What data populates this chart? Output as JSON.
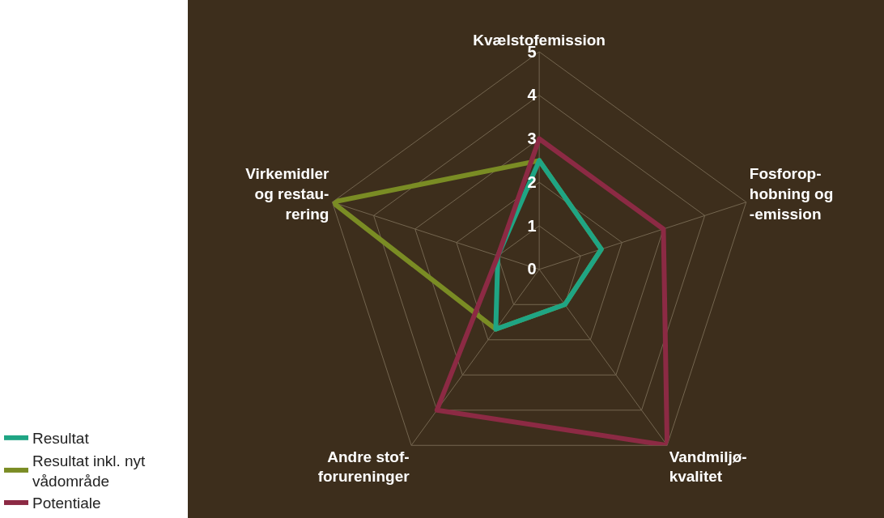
{
  "chart_data": {
    "type": "radar",
    "categories": [
      "Kvælstofemission",
      "Fosforop-\nhobning og\n-emission",
      "Vandmiljø-\nkvalitet",
      "Andre stof-\nforureninger",
      "Virkemidler\nog restau-\nrering"
    ],
    "series": [
      {
        "name": "Resultat",
        "color": "#1fa584",
        "values": [
          2.5,
          1.5,
          1.0,
          1.7,
          1.0
        ]
      },
      {
        "name": "Resultat inkl. nyt\nvådområde",
        "color": "#7a8c24",
        "values": [
          2.5,
          1.5,
          1.0,
          1.7,
          5
        ]
      },
      {
        "name": "Potentiale",
        "color": "#8c2a44",
        "values": [
          3.0,
          3.0,
          5,
          4.0,
          1.0
        ]
      }
    ],
    "ylim": [
      0,
      5
    ],
    "yticks": [
      0,
      1,
      2,
      3,
      4,
      5
    ],
    "grid": true,
    "legend": "bottom left",
    "marker": "none",
    "line_style": "solid"
  }
}
